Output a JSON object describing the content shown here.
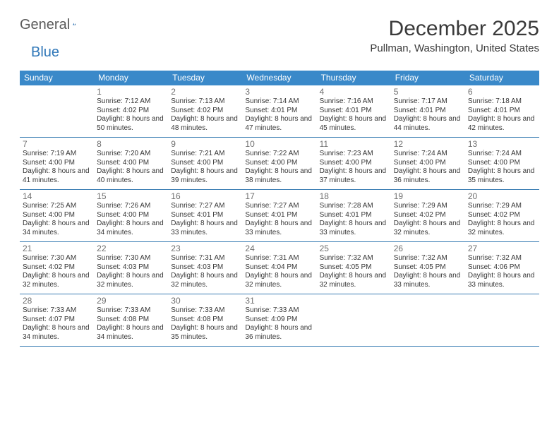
{
  "brand": {
    "part1": "General",
    "part2": "Blue"
  },
  "title": "December 2025",
  "location": "Pullman, Washington, United States",
  "colors": {
    "header_bg": "#3a89c9",
    "rule": "#3a7db3"
  },
  "dow": [
    "Sunday",
    "Monday",
    "Tuesday",
    "Wednesday",
    "Thursday",
    "Friday",
    "Saturday"
  ],
  "weeks": [
    [
      null,
      {
        "n": "1",
        "sr": "7:12 AM",
        "ss": "4:02 PM",
        "dl": "8 hours and 50 minutes."
      },
      {
        "n": "2",
        "sr": "7:13 AM",
        "ss": "4:02 PM",
        "dl": "8 hours and 48 minutes."
      },
      {
        "n": "3",
        "sr": "7:14 AM",
        "ss": "4:01 PM",
        "dl": "8 hours and 47 minutes."
      },
      {
        "n": "4",
        "sr": "7:16 AM",
        "ss": "4:01 PM",
        "dl": "8 hours and 45 minutes."
      },
      {
        "n": "5",
        "sr": "7:17 AM",
        "ss": "4:01 PM",
        "dl": "8 hours and 44 minutes."
      },
      {
        "n": "6",
        "sr": "7:18 AM",
        "ss": "4:01 PM",
        "dl": "8 hours and 42 minutes."
      }
    ],
    [
      {
        "n": "7",
        "sr": "7:19 AM",
        "ss": "4:00 PM",
        "dl": "8 hours and 41 minutes."
      },
      {
        "n": "8",
        "sr": "7:20 AM",
        "ss": "4:00 PM",
        "dl": "8 hours and 40 minutes."
      },
      {
        "n": "9",
        "sr": "7:21 AM",
        "ss": "4:00 PM",
        "dl": "8 hours and 39 minutes."
      },
      {
        "n": "10",
        "sr": "7:22 AM",
        "ss": "4:00 PM",
        "dl": "8 hours and 38 minutes."
      },
      {
        "n": "11",
        "sr": "7:23 AM",
        "ss": "4:00 PM",
        "dl": "8 hours and 37 minutes."
      },
      {
        "n": "12",
        "sr": "7:24 AM",
        "ss": "4:00 PM",
        "dl": "8 hours and 36 minutes."
      },
      {
        "n": "13",
        "sr": "7:24 AM",
        "ss": "4:00 PM",
        "dl": "8 hours and 35 minutes."
      }
    ],
    [
      {
        "n": "14",
        "sr": "7:25 AM",
        "ss": "4:00 PM",
        "dl": "8 hours and 34 minutes."
      },
      {
        "n": "15",
        "sr": "7:26 AM",
        "ss": "4:00 PM",
        "dl": "8 hours and 34 minutes."
      },
      {
        "n": "16",
        "sr": "7:27 AM",
        "ss": "4:01 PM",
        "dl": "8 hours and 33 minutes."
      },
      {
        "n": "17",
        "sr": "7:27 AM",
        "ss": "4:01 PM",
        "dl": "8 hours and 33 minutes."
      },
      {
        "n": "18",
        "sr": "7:28 AM",
        "ss": "4:01 PM",
        "dl": "8 hours and 33 minutes."
      },
      {
        "n": "19",
        "sr": "7:29 AM",
        "ss": "4:02 PM",
        "dl": "8 hours and 32 minutes."
      },
      {
        "n": "20",
        "sr": "7:29 AM",
        "ss": "4:02 PM",
        "dl": "8 hours and 32 minutes."
      }
    ],
    [
      {
        "n": "21",
        "sr": "7:30 AM",
        "ss": "4:02 PM",
        "dl": "8 hours and 32 minutes."
      },
      {
        "n": "22",
        "sr": "7:30 AM",
        "ss": "4:03 PM",
        "dl": "8 hours and 32 minutes."
      },
      {
        "n": "23",
        "sr": "7:31 AM",
        "ss": "4:03 PM",
        "dl": "8 hours and 32 minutes."
      },
      {
        "n": "24",
        "sr": "7:31 AM",
        "ss": "4:04 PM",
        "dl": "8 hours and 32 minutes."
      },
      {
        "n": "25",
        "sr": "7:32 AM",
        "ss": "4:05 PM",
        "dl": "8 hours and 32 minutes."
      },
      {
        "n": "26",
        "sr": "7:32 AM",
        "ss": "4:05 PM",
        "dl": "8 hours and 33 minutes."
      },
      {
        "n": "27",
        "sr": "7:32 AM",
        "ss": "4:06 PM",
        "dl": "8 hours and 33 minutes."
      }
    ],
    [
      {
        "n": "28",
        "sr": "7:33 AM",
        "ss": "4:07 PM",
        "dl": "8 hours and 34 minutes."
      },
      {
        "n": "29",
        "sr": "7:33 AM",
        "ss": "4:08 PM",
        "dl": "8 hours and 34 minutes."
      },
      {
        "n": "30",
        "sr": "7:33 AM",
        "ss": "4:08 PM",
        "dl": "8 hours and 35 minutes."
      },
      {
        "n": "31",
        "sr": "7:33 AM",
        "ss": "4:09 PM",
        "dl": "8 hours and 36 minutes."
      },
      null,
      null,
      null
    ]
  ]
}
